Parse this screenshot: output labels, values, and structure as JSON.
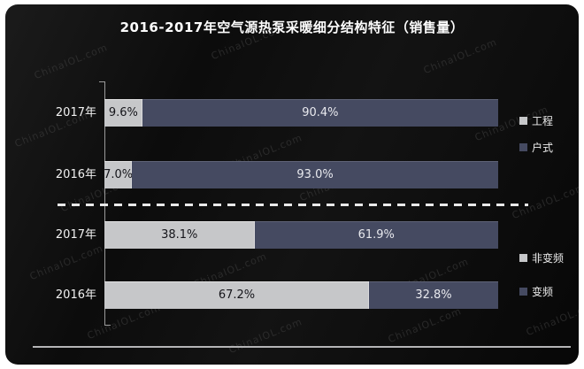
{
  "page": {
    "title": "2016-2017年空气源热泵采暖细分结构特征（销售量）",
    "watermark": "ChinaIOL.com"
  },
  "colors": {
    "page_bg": "#ffffff",
    "panel_bg": "#0e0e0e",
    "series_light": "#c6c7c9",
    "series_dark": "#454a61",
    "label_on_light": "#15151a",
    "label_on_dark": "#e8e9ee",
    "axis": "#9b9b9b",
    "dashed_separator": "#e9e9e9",
    "text": "#f2f2f2",
    "watermark": "#404040"
  },
  "chart_data": [
    {
      "type": "bar",
      "orientation": "horizontal",
      "stacked": true,
      "unit": "%",
      "xlim": [
        0,
        100
      ],
      "legend_position": "right",
      "categories": [
        "2017年",
        "2016年"
      ],
      "series": [
        {
          "name": "工程",
          "color": "#c6c7c9",
          "values": [
            9.6,
            7.0
          ]
        },
        {
          "name": "户式",
          "color": "#454a61",
          "values": [
            90.4,
            93.0
          ]
        }
      ],
      "value_labels": [
        [
          "9.6%",
          "90.4%"
        ],
        [
          "7.0%",
          "93.0%"
        ]
      ]
    },
    {
      "type": "bar",
      "orientation": "horizontal",
      "stacked": true,
      "unit": "%",
      "xlim": [
        0,
        100
      ],
      "legend_position": "right",
      "categories": [
        "2017年",
        "2016年"
      ],
      "series": [
        {
          "name": "非变频",
          "color": "#c6c7c9",
          "values": [
            38.1,
            67.2
          ]
        },
        {
          "name": "变频",
          "color": "#454a61",
          "values": [
            61.9,
            32.8
          ]
        }
      ],
      "value_labels": [
        [
          "38.1%",
          "61.9%"
        ],
        [
          "67.2%",
          "32.8%"
        ]
      ]
    }
  ]
}
